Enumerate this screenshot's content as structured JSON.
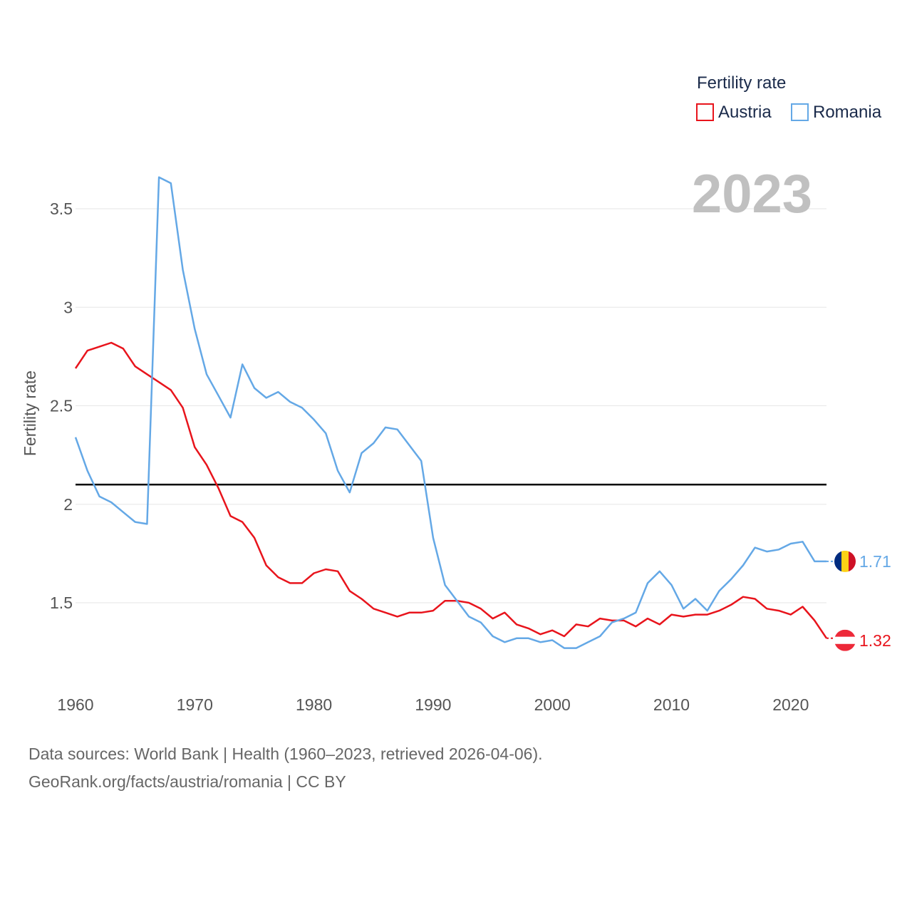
{
  "chart_data": {
    "type": "line",
    "title": "Fertility rate",
    "ylabel": "Fertility rate",
    "xlabel": "",
    "year_label": "2023",
    "xlim": [
      1960,
      2023
    ],
    "ylim": [
      1.13,
      3.88
    ],
    "yticks": [
      1.5,
      2,
      2.5,
      3,
      3.5
    ],
    "ytick_labels": [
      "1.5",
      "2",
      "2.5",
      "3",
      "3.5"
    ],
    "xticks": [
      1960,
      1970,
      1980,
      1990,
      2000,
      2010,
      2020
    ],
    "xtick_labels": [
      "1960",
      "1970",
      "1980",
      "1990",
      "2000",
      "2010",
      "2020"
    ],
    "reference_line": 2.1,
    "legend_position": "top-right",
    "x": [
      1960,
      1961,
      1962,
      1963,
      1964,
      1965,
      1966,
      1967,
      1968,
      1969,
      1970,
      1971,
      1972,
      1973,
      1974,
      1975,
      1976,
      1977,
      1978,
      1979,
      1980,
      1981,
      1982,
      1983,
      1984,
      1985,
      1986,
      1987,
      1988,
      1989,
      1990,
      1991,
      1992,
      1993,
      1994,
      1995,
      1996,
      1997,
      1998,
      1999,
      2000,
      2001,
      2002,
      2003,
      2004,
      2005,
      2006,
      2007,
      2008,
      2009,
      2010,
      2011,
      2012,
      2013,
      2014,
      2015,
      2016,
      2017,
      2018,
      2019,
      2020,
      2021,
      2022,
      2023
    ],
    "series": [
      {
        "name": "Austria",
        "color": "#e8141c",
        "end_label": "1.32",
        "values": [
          2.69,
          2.78,
          2.8,
          2.82,
          2.79,
          2.7,
          2.66,
          2.62,
          2.58,
          2.49,
          2.29,
          2.2,
          2.08,
          1.94,
          1.91,
          1.83,
          1.69,
          1.63,
          1.6,
          1.6,
          1.65,
          1.67,
          1.66,
          1.56,
          1.52,
          1.47,
          1.45,
          1.43,
          1.45,
          1.45,
          1.46,
          1.51,
          1.51,
          1.5,
          1.47,
          1.42,
          1.45,
          1.39,
          1.37,
          1.34,
          1.36,
          1.33,
          1.39,
          1.38,
          1.42,
          1.41,
          1.41,
          1.38,
          1.42,
          1.39,
          1.44,
          1.43,
          1.44,
          1.44,
          1.46,
          1.49,
          1.53,
          1.52,
          1.47,
          1.46,
          1.44,
          1.48,
          1.41,
          1.32
        ]
      },
      {
        "name": "Romania",
        "color": "#64a8e6",
        "end_label": "1.71",
        "values": [
          2.34,
          2.17,
          2.04,
          2.01,
          1.96,
          1.91,
          1.9,
          3.66,
          3.63,
          3.19,
          2.89,
          2.66,
          2.55,
          2.44,
          2.71,
          2.59,
          2.54,
          2.57,
          2.52,
          2.49,
          2.43,
          2.36,
          2.17,
          2.06,
          2.26,
          2.31,
          2.39,
          2.38,
          2.3,
          2.22,
          1.83,
          1.59,
          1.51,
          1.43,
          1.4,
          1.33,
          1.3,
          1.32,
          1.32,
          1.3,
          1.31,
          1.27,
          1.27,
          1.3,
          1.33,
          1.4,
          1.42,
          1.45,
          1.6,
          1.66,
          1.59,
          1.47,
          1.52,
          1.46,
          1.56,
          1.62,
          1.69,
          1.78,
          1.76,
          1.77,
          1.8,
          1.81,
          1.71,
          1.71
        ]
      }
    ]
  },
  "footer": {
    "line1": "Data sources: World Bank | Health (1960–2023, retrieved 2026-04-06).",
    "line2": "GeoRank.org/facts/austria/romania | CC BY"
  }
}
